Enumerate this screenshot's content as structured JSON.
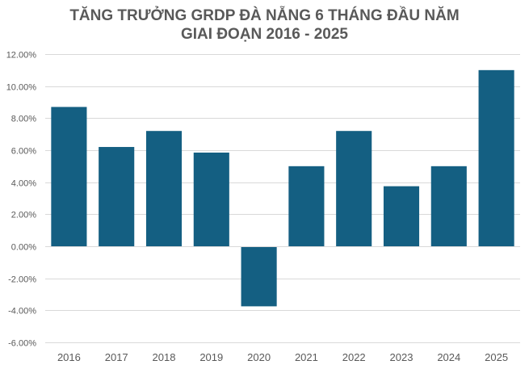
{
  "chart_data": {
    "type": "bar",
    "title_lines": [
      "TĂNG TRƯỞNG GRDP ĐÀ NẴNG 6 THÁNG ĐẦU NĂM",
      "GIAI ĐOẠN 2016 - 2025"
    ],
    "categories": [
      "2016",
      "2017",
      "2018",
      "2019",
      "2020",
      "2021",
      "2022",
      "2023",
      "2024",
      "2025"
    ],
    "series": [
      {
        "values": [
          8.7,
          6.2,
          7.2,
          5.85,
          -3.75,
          5.0,
          7.2,
          3.75,
          5.0,
          11.0
        ],
        "color": "#145f82"
      }
    ],
    "ylim": [
      -6,
      12
    ],
    "yticks": [
      12,
      10,
      8,
      6,
      4,
      2,
      0,
      -2,
      -4,
      -6
    ],
    "ytick_labels": [
      "12.00%",
      "10.00%",
      "8.00%",
      "6.00%",
      "4.00%",
      "2.00%",
      "0.00%",
      "-2.00%",
      "-4.00%",
      "-6.00%"
    ],
    "xlabel": "",
    "ylabel": "",
    "grid": true,
    "legend": "none"
  }
}
